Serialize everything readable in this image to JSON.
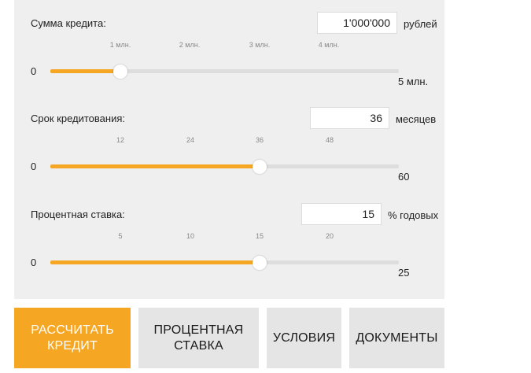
{
  "colors": {
    "accent": "#f5a623",
    "panel": "#efefef",
    "track": "#dddddd",
    "secondary_button": "#e5e5e5"
  },
  "loan_amount": {
    "label": "Сумма кредита:",
    "value": "1'000'000",
    "unit": "рублей",
    "min_label": "0",
    "max_label": "5 млн.",
    "ticks": [
      "1 млн.",
      "2 млн.",
      "3 млн.",
      "4 млн."
    ],
    "slider_fraction": 0.2
  },
  "loan_term": {
    "label": "Срок кредитования:",
    "value": "36",
    "unit": "месяцев",
    "min_label": "0",
    "max_label": "60",
    "ticks": [
      "12",
      "24",
      "36",
      "48"
    ],
    "slider_fraction": 0.6
  },
  "interest_rate": {
    "label": "Процентная ставка:",
    "value": "15",
    "unit": "% годовых",
    "min_label": "0",
    "max_label": "25",
    "ticks": [
      "5",
      "10",
      "15",
      "20"
    ],
    "slider_fraction": 0.6
  },
  "buttons": {
    "calculate": "РАССЧИТАТЬ\nКРЕДИТ",
    "rate": "ПРОЦЕНТНАЯ\nСТАВКА",
    "conditions": "УСЛОВИЯ",
    "documents": "ДОКУМЕНТЫ"
  }
}
